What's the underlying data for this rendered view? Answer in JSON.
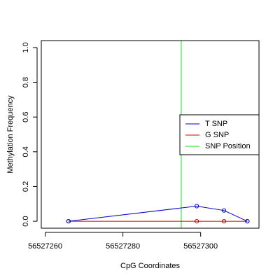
{
  "chart_data": {
    "type": "line",
    "xlabel": "CpG Coordinates",
    "ylabel": "Methylation Frequency",
    "xlim": [
      56527259,
      56527315
    ],
    "ylim": [
      -0.04,
      1.04
    ],
    "x_ticks": [
      56527260,
      56527280,
      56527300
    ],
    "y_ticks": [
      0.0,
      0.2,
      0.4,
      0.6,
      0.8,
      1.0
    ],
    "x_tick_labels": [
      "56527260",
      "56527280",
      "56527300"
    ],
    "y_tick_labels": [
      "0.0",
      "0.2",
      "0.4",
      "0.6",
      "0.8",
      "1.0"
    ],
    "grid": false,
    "legend_position": "right",
    "series": [
      {
        "name": "T SNP",
        "color": "#0000cc",
        "marker": "open-circle",
        "x": [
          56527266,
          56527299,
          56527306,
          56527312
        ],
        "y": [
          0.0,
          0.087,
          0.062,
          0.0
        ]
      },
      {
        "name": "G SNP",
        "color": "#cc0000",
        "marker": "open-circle",
        "x": [
          56527266,
          56527299,
          56527306,
          56527312
        ],
        "y": [
          0.0,
          0.0,
          0.0,
          0.0
        ]
      }
    ],
    "vlines": [
      {
        "name": "SNP Position",
        "color": "#00ee00",
        "x": 56527295
      }
    ]
  }
}
